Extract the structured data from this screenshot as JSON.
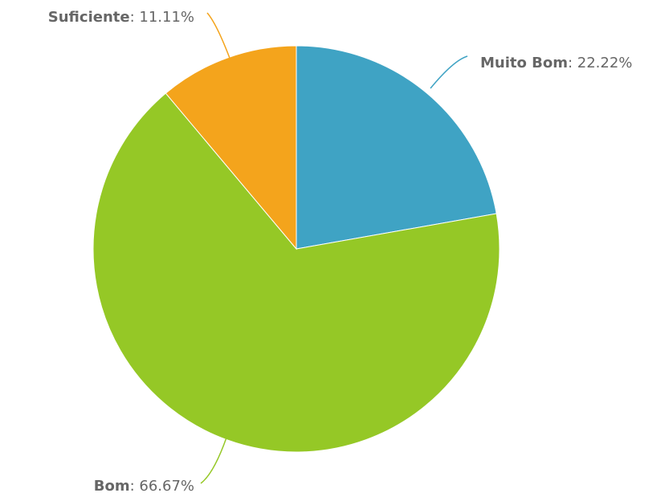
{
  "chart_data": {
    "type": "pie",
    "title": "",
    "slices": [
      {
        "label": "Muito Bom",
        "value": 22.22,
        "display": "22.22%",
        "color": "#3FA3C4"
      },
      {
        "label": "Bom",
        "value": 66.67,
        "display": "66.67%",
        "color": "#95C826"
      },
      {
        "label": "Suficiente",
        "value": 11.11,
        "display": "11.11%",
        "color": "#F4A41C"
      }
    ],
    "start": "12 o'clock, clockwise",
    "legend": "none"
  }
}
